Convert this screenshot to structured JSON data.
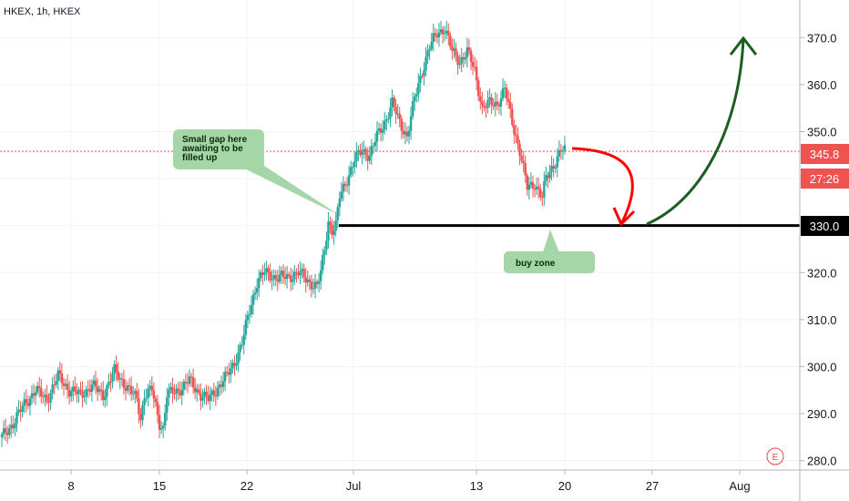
{
  "symbol": "HKEX, 1h, HKEX",
  "colors": {
    "up": "#26a69a",
    "down": "#ef5350",
    "level": "#000000",
    "current_line": "#ef5350",
    "note_fill": "#a5d6a7",
    "arrow_red": "#ff0000",
    "arrow_green": "#1b5e20",
    "tag_black": "#000000",
    "tag_red": "#ef5350"
  },
  "price_tags": {
    "current": "345.8",
    "countdown": "27:26",
    "level": "330.0"
  },
  "notes": {
    "gap": [
      "Small gap here",
      "awaiting to be",
      "filled up"
    ],
    "buy_zone": "buy zone"
  },
  "earnings_marker": "E",
  "chart_data": {
    "type": "candlestick",
    "title": "HKEX, 1h, HKEX",
    "ylim": [
      278,
      378
    ],
    "y_ticks": [
      "280.0",
      "290.0",
      "300.0",
      "310.0",
      "320.0",
      "330.0",
      "340.0",
      "350.0",
      "360.0",
      "370.0"
    ],
    "x_ticks": [
      "8",
      "15",
      "22",
      "Jul",
      "13",
      "20",
      "27",
      "Aug"
    ],
    "current_price": 345.8,
    "level": 330.0,
    "waypoints": [
      [
        0,
        285
      ],
      [
        3,
        288
      ],
      [
        6,
        292
      ],
      [
        9,
        295
      ],
      [
        12,
        293
      ],
      [
        15,
        298
      ],
      [
        18,
        295
      ],
      [
        21,
        294
      ],
      [
        24,
        296
      ],
      [
        27,
        294
      ],
      [
        30,
        299
      ],
      [
        33,
        296
      ],
      [
        36,
        293
      ],
      [
        37,
        289
      ],
      [
        38,
        294
      ],
      [
        40,
        295
      ],
      [
        42,
        288
      ],
      [
        43,
        287
      ],
      [
        44,
        294
      ],
      [
        47,
        295
      ],
      [
        50,
        297
      ],
      [
        53,
        294
      ],
      [
        55,
        293
      ],
      [
        58,
        296
      ],
      [
        60,
        298
      ],
      [
        62,
        301
      ],
      [
        64,
        305
      ],
      [
        66,
        312
      ],
      [
        68,
        318
      ],
      [
        70,
        320
      ],
      [
        73,
        319
      ],
      [
        76,
        319
      ],
      [
        79,
        320
      ],
      [
        82,
        318
      ],
      [
        84,
        317
      ],
      [
        85,
        320
      ],
      [
        86,
        325
      ],
      [
        87,
        331
      ],
      [
        88,
        329
      ],
      [
        89,
        330
      ],
      [
        90,
        336
      ],
      [
        92,
        340
      ],
      [
        94,
        344
      ],
      [
        96,
        346
      ],
      [
        98,
        345
      ],
      [
        100,
        349
      ],
      [
        102,
        352
      ],
      [
        104,
        356
      ],
      [
        106,
        352
      ],
      [
        108,
        349
      ],
      [
        110,
        357
      ],
      [
        112,
        363
      ],
      [
        114,
        368
      ],
      [
        116,
        371
      ],
      [
        118,
        372
      ],
      [
        120,
        367
      ],
      [
        122,
        365
      ],
      [
        124,
        367
      ],
      [
        126,
        363
      ],
      [
        128,
        355
      ],
      [
        130,
        356
      ],
      [
        132,
        356
      ],
      [
        134,
        359
      ],
      [
        136,
        352
      ],
      [
        138,
        346
      ],
      [
        140,
        338
      ],
      [
        142,
        339
      ],
      [
        144,
        336
      ],
      [
        145,
        340
      ],
      [
        147,
        343
      ],
      [
        149,
        346
      ],
      [
        150,
        345.8
      ]
    ]
  }
}
